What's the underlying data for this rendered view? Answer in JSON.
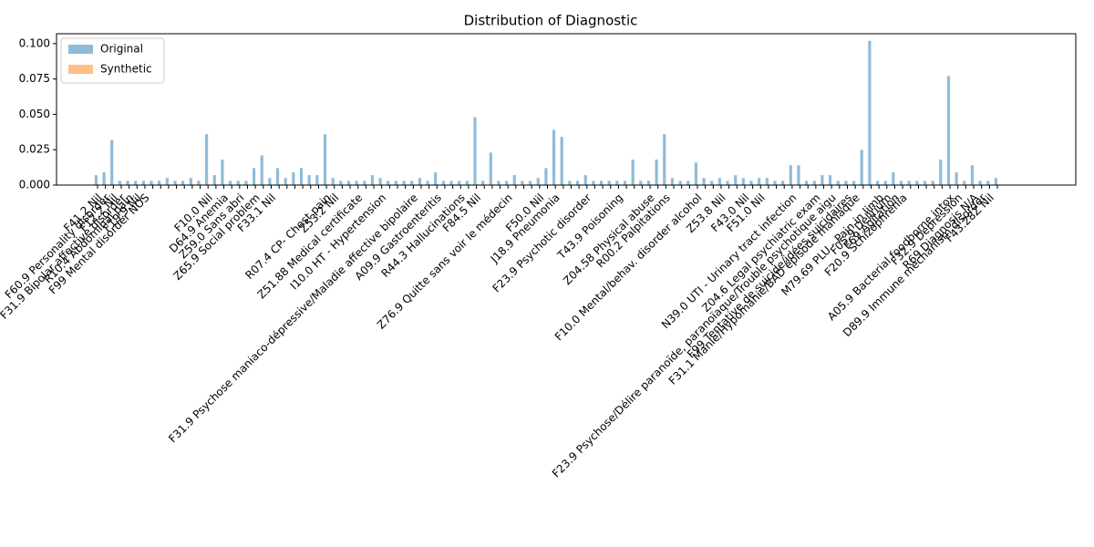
{
  "chart_data": {
    "type": "bar",
    "title": "Distribution of Diagnostic",
    "categories": [
      "F41.2 Nil",
      "F60.9 Personality disorder",
      "F12.2 Nil",
      "F31.9 Bipolar affective disorder",
      "R10.4 Abdominal pain",
      "F19.9 Nil",
      "F99 Mental disorder NOS",
      null,
      null,
      null,
      null,
      null,
      null,
      null,
      "F10.0 Nil",
      null,
      "D64.9 Anemia",
      null,
      "Z59.0 Sans abri",
      null,
      "Z65.9 Social problem",
      null,
      "F33.1 Nil",
      null,
      null,
      null,
      null,
      null,
      null,
      "R07.4 CP- Chest pain",
      "Z53.2 Nil",
      null,
      null,
      "Z51.88 Medical certificate",
      null,
      null,
      "I10.0 HT - Hypertension",
      null,
      null,
      null,
      "F31.9 Psychose maniaco-dépressive/Maladie affective bipolaire",
      null,
      null,
      "A09.9 Gastroenteritis",
      null,
      null,
      "R44.3 Hallucinations",
      null,
      "F84.5 Nil",
      null,
      null,
      null,
      "Z76.9 Quitte sans voir le médecin",
      null,
      null,
      null,
      "F50.0 Nil",
      null,
      "J18.9 Pneumonia",
      null,
      null,
      null,
      "F23.9 Psychotic disorder",
      null,
      null,
      null,
      "T43.9 Poisoning",
      null,
      null,
      null,
      "Z04.58 Physical abuse",
      null,
      "R00.2 Palpitations",
      null,
      null,
      null,
      "F10.0 Mental/behav. disorder alcohol",
      null,
      null,
      "Z53.8 Nil",
      null,
      null,
      "F43.0 Nil",
      null,
      "F51.0 Nil",
      null,
      null,
      null,
      "N39.0 UTI - Urinary tract infection",
      null,
      null,
      "Z04.6 Legal psychiatric exam",
      null,
      "F23.9 Psychose/Délire paranoïde, paranoïaque/Trouble psychotique aigu",
      null,
      "F99 Tentative de suicide/idées suicidaires",
      "F31.1 Manie/Hypomanie/BAD épisode maniaque",
      null,
      null,
      "M79.69 PLU - Pain in limb",
      "F05.9 Delirium",
      "F69 Agitation",
      "F20.9 Schizophrenia",
      null,
      null,
      null,
      null,
      null,
      "A05.9 Bacterial foodborne intox",
      "F32.9 Depression",
      null,
      "R69 Diagnosis N/A",
      "D89.9 Immune mechanism disorder",
      "F43.28Z Nil",
      null
    ],
    "series": [
      {
        "name": "Original",
        "color": "#8fbbd9",
        "values": [
          0.007,
          0.009,
          0.032,
          0.003,
          0.003,
          0.003,
          0.003,
          0.003,
          0.003,
          0.005,
          0.003,
          0.003,
          0.005,
          0.003,
          0.036,
          0.007,
          0.018,
          0.003,
          0.003,
          0.003,
          0.012,
          0.021,
          0.005,
          0.012,
          0.005,
          0.009,
          0.012,
          0.007,
          0.007,
          0.036,
          0.005,
          0.003,
          0.003,
          0.003,
          0.003,
          0.007,
          0.005,
          0.003,
          0.003,
          0.003,
          0.003,
          0.005,
          0.003,
          0.009,
          0.003,
          0.003,
          0.003,
          0.003,
          0.048,
          0.003,
          0.023,
          0.003,
          0.003,
          0.007,
          0.003,
          0.003,
          0.005,
          0.012,
          0.039,
          0.034,
          0.003,
          0.003,
          0.007,
          0.003,
          0.003,
          0.003,
          0.003,
          0.003,
          0.018,
          0.003,
          0.003,
          0.018,
          0.036,
          0.005,
          0.003,
          0.003,
          0.016,
          0.005,
          0.003,
          0.005,
          0.003,
          0.007,
          0.005,
          0.003,
          0.005,
          0.005,
          0.003,
          0.003,
          0.014,
          0.014,
          0.003,
          0.003,
          0.007,
          0.007,
          0.003,
          0.003,
          0.003,
          0.025,
          0.102,
          0.003,
          0.003,
          0.009,
          0.003,
          0.003,
          0.003,
          0.003,
          0.003,
          0.018,
          0.077,
          0.009,
          0.003,
          0.014,
          0.003,
          0.003,
          0.005
        ]
      },
      {
        "name": "Synthetic",
        "color": "#ffbf86",
        "values": [
          0,
          0,
          0,
          0,
          0,
          0,
          0,
          0,
          0,
          0,
          0,
          0,
          0,
          0,
          0,
          0,
          0,
          0,
          0,
          0,
          0,
          0,
          0,
          0,
          0,
          0,
          0,
          0,
          0,
          0,
          0,
          0,
          0,
          0,
          0,
          0,
          0,
          0,
          0,
          0,
          0,
          0,
          0,
          0,
          0,
          0,
          0,
          0,
          0,
          0,
          0,
          0,
          0,
          0,
          0,
          0,
          0,
          0,
          0,
          0,
          0,
          0,
          0,
          0,
          0,
          0,
          0,
          0,
          0,
          0,
          0,
          0,
          0,
          0,
          0,
          0,
          0,
          0,
          0,
          0,
          0,
          0,
          0,
          0,
          0,
          0,
          0,
          0,
          0,
          0,
          0,
          0,
          0,
          0,
          0,
          0,
          0,
          0,
          0,
          0,
          0,
          0,
          0,
          0,
          0,
          0,
          0,
          0,
          0,
          0,
          0,
          0,
          0,
          0,
          0
        ]
      }
    ],
    "ylim": [
      0,
      0.107
    ],
    "yticks": [
      {
        "value": 0,
        "label": "0.000"
      },
      {
        "value": 0.025,
        "label": "0.025"
      },
      {
        "value": 0.05,
        "label": "0.050"
      },
      {
        "value": 0.075,
        "label": "0.075"
      },
      {
        "value": 0.1,
        "label": "0.100"
      }
    ],
    "legend": "upper left"
  }
}
